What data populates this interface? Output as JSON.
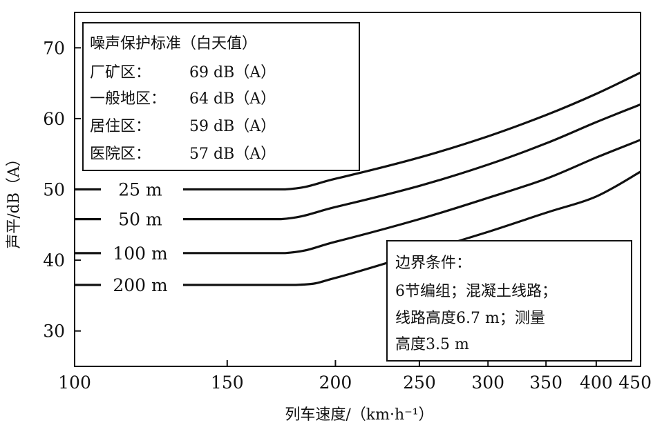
{
  "chart_data": {
    "type": "line",
    "xlabel": "列车速度/（km·h⁻¹）",
    "ylabel": "声平/dB（A）",
    "x_scale": "log",
    "xlim": [
      100,
      450
    ],
    "ylim": [
      25,
      75
    ],
    "x_ticks": [
      {
        "value": 100,
        "label": "100"
      },
      {
        "value": 150,
        "label": "150"
      },
      {
        "value": 200,
        "label": "200"
      },
      {
        "value": 250,
        "label": "250"
      },
      {
        "value": 300,
        "label": "300"
      },
      {
        "value": 350,
        "label": "350"
      },
      {
        "value": 400,
        "label": "400"
      },
      {
        "value": 450,
        "label": "450"
      }
    ],
    "y_ticks": [
      {
        "value": 30,
        "label": "30"
      },
      {
        "value": 40,
        "label": "40"
      },
      {
        "value": 50,
        "label": "50"
      },
      {
        "value": 60,
        "label": "60"
      },
      {
        "value": 70,
        "label": "70"
      }
    ],
    "grid": false,
    "series": [
      {
        "name": "25 m",
        "points": [
          [
            100,
            50.0
          ],
          [
            175,
            50.0
          ],
          [
            200,
            51.5
          ],
          [
            250,
            54.5
          ],
          [
            300,
            57.5
          ],
          [
            350,
            60.5
          ],
          [
            400,
            63.5
          ],
          [
            450,
            66.5
          ]
        ]
      },
      {
        "name": "50 m",
        "points": [
          [
            100,
            45.8
          ],
          [
            173,
            45.8
          ],
          [
            200,
            47.5
          ],
          [
            250,
            50.5
          ],
          [
            300,
            53.5
          ],
          [
            350,
            56.5
          ],
          [
            400,
            59.5
          ],
          [
            450,
            62.0
          ]
        ]
      },
      {
        "name": "100 m",
        "points": [
          [
            100,
            41.0
          ],
          [
            175,
            41.0
          ],
          [
            200,
            42.6
          ],
          [
            250,
            45.8
          ],
          [
            300,
            48.8
          ],
          [
            350,
            51.5
          ],
          [
            400,
            54.5
          ],
          [
            450,
            57.0
          ]
        ]
      },
      {
        "name": "200 m",
        "points": [
          [
            100,
            36.5
          ],
          [
            180,
            36.5
          ],
          [
            200,
            37.5
          ],
          [
            250,
            41.0
          ],
          [
            300,
            44.0
          ],
          [
            350,
            46.7
          ],
          [
            400,
            49.0
          ],
          [
            450,
            52.5
          ]
        ]
      }
    ],
    "annotations": {
      "standards_box": {
        "title": "噪声保护标准（白天值）",
        "rows": [
          {
            "zone": "厂矿区：",
            "value": "69 dB（A）"
          },
          {
            "zone": "一般地区：",
            "value": "64 dB（A）"
          },
          {
            "zone": "居住区：",
            "value": "59 dB（A）"
          },
          {
            "zone": "医院区：",
            "value": "57 dB（A）"
          }
        ]
      },
      "conditions_box": {
        "lines": [
          "边界条件：",
          "6节编组；混凝土线路；",
          "线路高度6.7 m；测量",
          "高度3.5 m"
        ]
      }
    }
  }
}
